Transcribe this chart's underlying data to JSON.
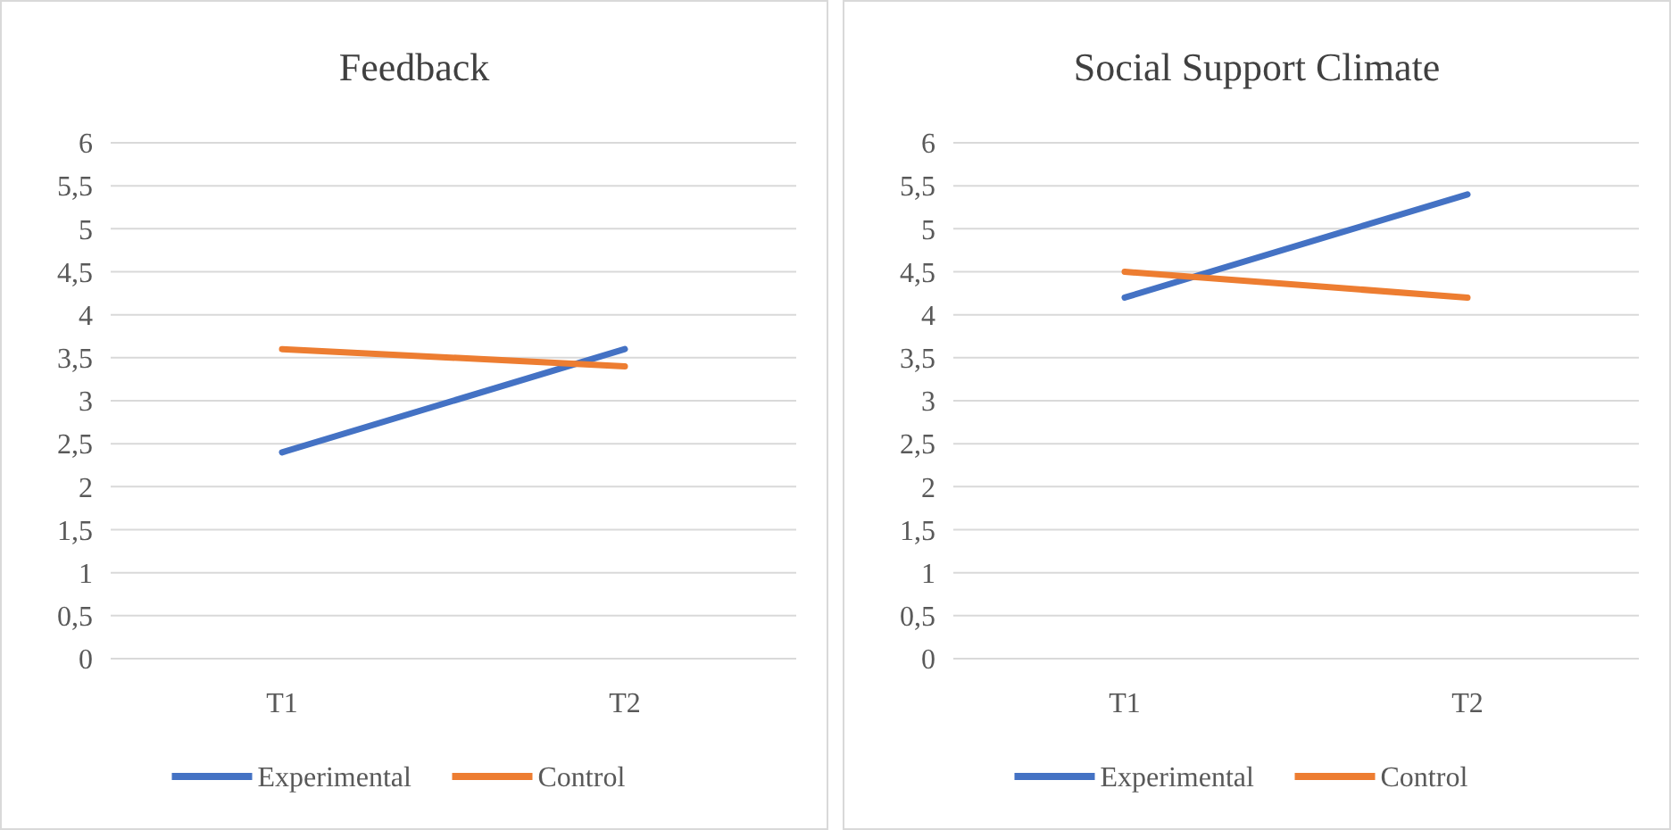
{
  "chart_data": [
    {
      "type": "line",
      "title": "Feedback",
      "categories": [
        "T1",
        "T2"
      ],
      "series": [
        {
          "name": "Experimental",
          "color": "#4472c4",
          "values": [
            2.4,
            3.6
          ]
        },
        {
          "name": "Control",
          "color": "#ed7d31",
          "values": [
            3.6,
            3.4
          ]
        }
      ],
      "ylim": [
        0,
        6
      ],
      "yticks": [
        0,
        {
          "value": 0.5,
          "label": "0,5"
        },
        1,
        {
          "value": 1.5,
          "label": "1,5"
        },
        2,
        {
          "value": 2.5,
          "label": "2,5"
        },
        3,
        {
          "value": 3.5,
          "label": "3,5"
        },
        4,
        {
          "value": 4.5,
          "label": "4,5"
        },
        5,
        {
          "value": 5.5,
          "label": "5,5"
        },
        6
      ],
      "grid": "y",
      "legend": "bottom",
      "marker": "none"
    },
    {
      "type": "line",
      "title": "Social Support Climate",
      "categories": [
        "T1",
        "T2"
      ],
      "series": [
        {
          "name": "Experimental",
          "color": "#4472c4",
          "values": [
            4.2,
            5.4
          ]
        },
        {
          "name": "Control",
          "color": "#ed7d31",
          "values": [
            4.5,
            4.2
          ]
        }
      ],
      "ylim": [
        0,
        6
      ],
      "yticks": [
        0,
        {
          "value": 0.5,
          "label": "0,5"
        },
        1,
        {
          "value": 1.5,
          "label": "1,5"
        },
        2,
        {
          "value": 2.5,
          "label": "2,5"
        },
        3,
        {
          "value": 3.5,
          "label": "3,5"
        },
        4,
        {
          "value": 4.5,
          "label": "4,5"
        },
        5,
        {
          "value": 5.5,
          "label": "5,5"
        },
        6
      ],
      "grid": "y",
      "legend": "bottom",
      "marker": "none"
    }
  ]
}
